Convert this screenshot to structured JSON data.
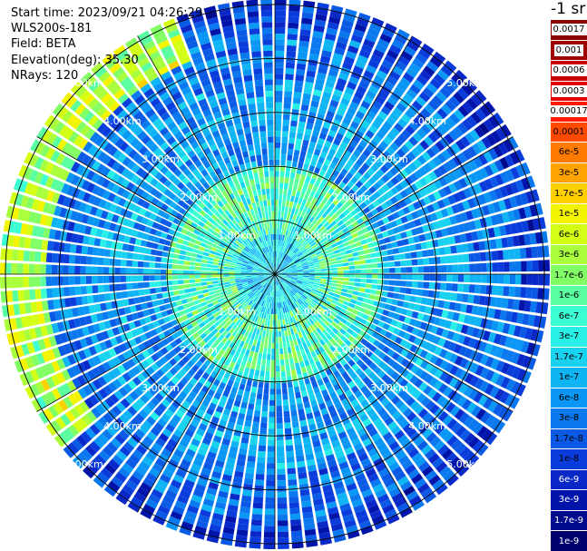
{
  "info": {
    "start_time": "Start time: 2023/09/21 04:26:29",
    "site": "WLS200s-181",
    "field": "Field: BETA",
    "elevation": "Elevation(deg): 35.30",
    "nrays": "NRays: 120"
  },
  "colorbar": {
    "unit_label": "-1 sr",
    "entries": [
      {
        "label": "0.0017",
        "color": "#8c0000"
      },
      {
        "label": "0.001",
        "color": "#9e0000"
      },
      {
        "label": "0.0006",
        "color": "#c80000"
      },
      {
        "label": "0.0003",
        "color": "#e00000"
      },
      {
        "label": "0.00017",
        "color": "#ff1a00"
      },
      {
        "label": "0.0001",
        "color": "#ff4a00"
      },
      {
        "label": "6e-5",
        "color": "#ff7a00"
      },
      {
        "label": "3e-5",
        "color": "#ffa300"
      },
      {
        "label": "1.7e-5",
        "color": "#ffcf00"
      },
      {
        "label": "1e-5",
        "color": "#f4f400"
      },
      {
        "label": "6e-6",
        "color": "#d2ff14"
      },
      {
        "label": "3e-6",
        "color": "#aaff3c"
      },
      {
        "label": "1.7e-6",
        "color": "#82ff64"
      },
      {
        "label": "1e-6",
        "color": "#5affa0"
      },
      {
        "label": "6e-7",
        "color": "#3cffd2"
      },
      {
        "label": "3e-7",
        "color": "#28f0e6"
      },
      {
        "label": "1.7e-7",
        "color": "#19d2f0"
      },
      {
        "label": "1e-7",
        "color": "#0fb4f5"
      },
      {
        "label": "6e-8",
        "color": "#0a96f5"
      },
      {
        "label": "3e-8",
        "color": "#0a78ee"
      },
      {
        "label": "1.7e-8",
        "color": "#0a5ae6"
      },
      {
        "label": "1e-8",
        "color": "#0a3cdc"
      },
      {
        "label": "6e-9",
        "color": "#0a28c8"
      },
      {
        "label": "3e-9",
        "color": "#0014aa"
      },
      {
        "label": "1.7e-9",
        "color": "#000a8c"
      },
      {
        "label": "1e-9",
        "color": "#00006e"
      }
    ]
  },
  "chart_data": {
    "type": "heatmap",
    "projection": "polar PPI scan",
    "range_rings_km": [
      "1.00km",
      "2.00km",
      "3.00km",
      "4.00km",
      "5.00km"
    ],
    "max_range_km": 5.1,
    "n_rays": 120,
    "color_scale": "log",
    "value_range": [
      1e-09,
      0.0017
    ],
    "bands": [
      {
        "range_km": [
          0.0,
          0.7
        ],
        "typical_value": 1.7e-07
      },
      {
        "range_km": [
          0.7,
          2.0
        ],
        "typical_value": 6e-07
      },
      {
        "range_km": [
          2.0,
          3.6
        ],
        "typical_value": 6e-08
      },
      {
        "range_km": [
          3.6,
          4.6
        ],
        "typical_value": 3e-08
      },
      {
        "range_km": [
          4.3,
          5.1
        ],
        "azimuth_deg": [
          230,
          340
        ],
        "typical_value": 3e-06
      }
    ]
  }
}
